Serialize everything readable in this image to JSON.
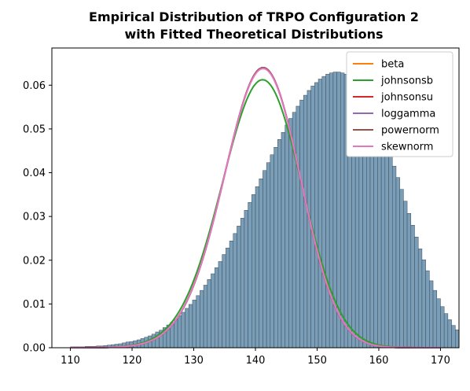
{
  "chart_data": {
    "type": "histogram",
    "title_lines": [
      "Empirical Distribution of TRPO Configuration 2",
      "with Fitted Theoretical Distributions"
    ],
    "xlabel": "",
    "ylabel": "",
    "xlim": [
      107,
      173
    ],
    "ylim": [
      0,
      0.0685
    ],
    "xticks": [
      110,
      120,
      130,
      140,
      150,
      160,
      170
    ],
    "yticks": [
      0.0,
      0.01,
      0.02,
      0.03,
      0.04,
      0.05,
      0.06
    ],
    "ytick_labels": [
      "0.00",
      "0.01",
      "0.02",
      "0.03",
      "0.04",
      "0.05",
      "0.06"
    ],
    "grid": false,
    "legend_position": "top-right",
    "histogram": {
      "bin_width": 0.6,
      "bin_start": 110.0,
      "bar_color": "#7b9eb8",
      "edge_color": "#3a4a58",
      "densities": [
        0.0002,
        0.0002,
        0.0002,
        0.0002,
        0.0003,
        0.0003,
        0.0003,
        0.0004,
        0.0004,
        0.0005,
        0.0006,
        0.0007,
        0.0008,
        0.0009,
        0.0011,
        0.0013,
        0.0014,
        0.0016,
        0.0018,
        0.0021,
        0.0024,
        0.0027,
        0.0031,
        0.0036,
        0.004,
        0.0046,
        0.0052,
        0.0058,
        0.0065,
        0.0073,
        0.0081,
        0.009,
        0.0099,
        0.0109,
        0.0119,
        0.0131,
        0.0143,
        0.0156,
        0.0169,
        0.0183,
        0.0197,
        0.0213,
        0.0228,
        0.0244,
        0.0261,
        0.0278,
        0.0296,
        0.0314,
        0.0332,
        0.035,
        0.0368,
        0.0386,
        0.0405,
        0.0423,
        0.0441,
        0.0458,
        0.0476,
        0.0492,
        0.0509,
        0.0524,
        0.0538,
        0.0552,
        0.0566,
        0.0577,
        0.0588,
        0.0598,
        0.0606,
        0.0614,
        0.062,
        0.0625,
        0.0628,
        0.063,
        0.063,
        0.0628,
        0.0625,
        0.062,
        0.0613,
        0.0604,
        0.0593,
        0.058,
        0.0565,
        0.0548,
        0.053,
        0.051,
        0.0488,
        0.0465,
        0.0441,
        0.0415,
        0.0389,
        0.0362,
        0.0335,
        0.0307,
        0.028,
        0.0253,
        0.0226,
        0.0201,
        0.0176,
        0.0153,
        0.0131,
        0.0112,
        0.0094,
        0.0078,
        0.0064,
        0.0051,
        0.0041,
        0.0032,
        0.0024,
        0.0018,
        0.0014,
        0.001,
        0.0007,
        0.0005,
        0.0003,
        0.0002,
        0.0001,
        0.0001,
        0.0001,
        0,
        0,
        0,
        0,
        0,
        0,
        0,
        0,
        0,
        0,
        0,
        0,
        0,
        0,
        0,
        0,
        0,
        0,
        0,
        0,
        0,
        0,
        0,
        0,
        0,
        0,
        0,
        0,
        0,
        0,
        0,
        0,
        0,
        0,
        0,
        0,
        0,
        0,
        0,
        0,
        0,
        0,
        0,
        0,
        0,
        0,
        0,
        0,
        0,
        0,
        0,
        0,
        0,
        0,
        0,
        0,
        0,
        0,
        0,
        0,
        0,
        0,
        0,
        0,
        0,
        0,
        0,
        0,
        0,
        0,
        0,
        0,
        0,
        0,
        0,
        0,
        0,
        0,
        0,
        0
      ]
    },
    "series": [
      {
        "name": "beta",
        "color": "#ff7f0e",
        "params": {
          "mean": 140.8,
          "std": 6.28,
          "alpha": -1.0
        }
      },
      {
        "name": "johnsonsb",
        "color": "#2ca02c",
        "params": {
          "mean": 140.8,
          "std": 6.55,
          "alpha": -0.9
        }
      },
      {
        "name": "johnsonsu",
        "color": "#d62728",
        "params": {
          "mean": 140.8,
          "std": 6.28,
          "alpha": -1.0
        }
      },
      {
        "name": "loggamma",
        "color": "#9467bd",
        "params": {
          "mean": 140.8,
          "std": 6.28,
          "alpha": -1.0
        }
      },
      {
        "name": "powernorm",
        "color": "#8c564b",
        "params": {
          "mean": 140.8,
          "std": 6.28,
          "alpha": -1.0
        }
      },
      {
        "name": "skewnorm",
        "color": "#e377c2",
        "params": {
          "mean": 140.8,
          "std": 6.3,
          "alpha": -1.0
        }
      }
    ]
  }
}
